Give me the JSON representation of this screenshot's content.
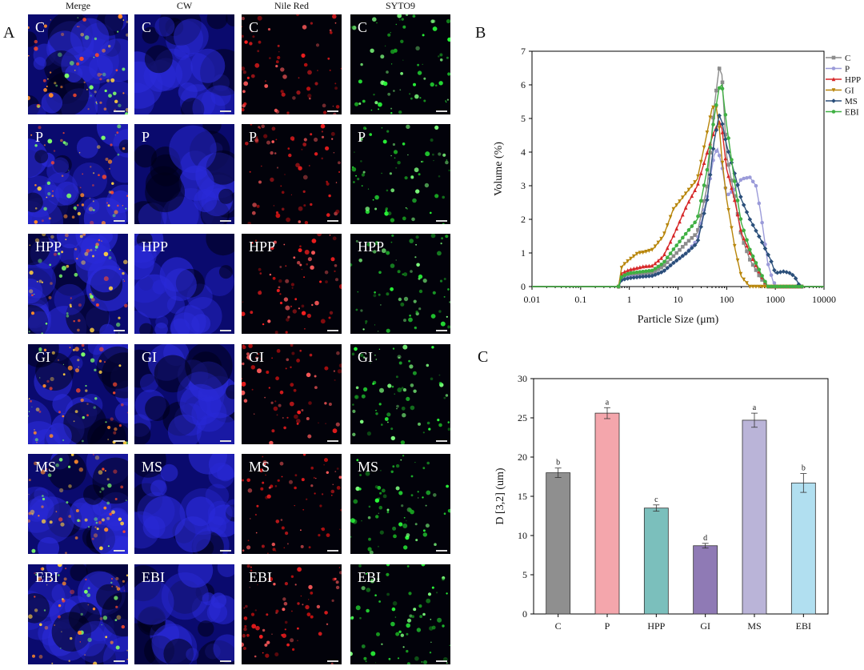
{
  "panel_letters": {
    "a": "A",
    "b": "B",
    "c": "C"
  },
  "micro": {
    "columns": [
      {
        "title": "Merge",
        "key": "merge"
      },
      {
        "title": "CW",
        "key": "cw"
      },
      {
        "title": "Nile Red",
        "key": "nile"
      },
      {
        "title": "SYTO9",
        "key": "syto"
      }
    ],
    "rows": [
      "C",
      "P",
      "HPP",
      "GI",
      "MS",
      "EBI"
    ]
  },
  "chart_data": [
    {
      "type": "line",
      "xlabel": "Particle Size (μm)",
      "ylabel": "Volume (%)",
      "xscale": "log",
      "xlim": [
        0.01,
        10000
      ],
      "ylim": [
        0,
        7
      ],
      "xticks": [
        "0.01",
        "0.1",
        "1",
        "10",
        "100",
        "1000",
        "10000"
      ],
      "yticks": [
        "0",
        "1",
        "2",
        "3",
        "4",
        "5",
        "6",
        "7"
      ],
      "legend_position": "top-right",
      "series": [
        {
          "name": "C",
          "color": "#8c8c8c",
          "marker": "square",
          "points": [
            [
              0.01,
              0
            ],
            [
              0.5,
              0
            ],
            [
              0.6,
              0
            ],
            [
              0.7,
              0.28
            ],
            [
              1,
              0.35
            ],
            [
              2,
              0.4
            ],
            [
              3,
              0.42
            ],
            [
              5,
              0.6
            ],
            [
              8,
              0.9
            ],
            [
              15,
              1.3
            ],
            [
              25,
              1.6
            ],
            [
              40,
              3.0
            ],
            [
              55,
              5.3
            ],
            [
              70,
              6.5
            ],
            [
              80,
              6.3
            ],
            [
              100,
              3.9
            ],
            [
              150,
              2.6
            ],
            [
              200,
              1.5
            ],
            [
              300,
              0.8
            ],
            [
              500,
              0.25
            ],
            [
              700,
              0
            ],
            [
              10000,
              0
            ]
          ]
        },
        {
          "name": "P",
          "color": "#9b9bd9",
          "marker": "circle",
          "points": [
            [
              0.01,
              0
            ],
            [
              0.5,
              0
            ],
            [
              0.6,
              0
            ],
            [
              0.7,
              0.22
            ],
            [
              1,
              0.28
            ],
            [
              2,
              0.3
            ],
            [
              3,
              0.32
            ],
            [
              5,
              0.45
            ],
            [
              8,
              0.7
            ],
            [
              15,
              1.0
            ],
            [
              25,
              1.4
            ],
            [
              40,
              2.7
            ],
            [
              55,
              3.9
            ],
            [
              65,
              4.1
            ],
            [
              80,
              3.6
            ],
            [
              100,
              2.7
            ],
            [
              150,
              2.9
            ],
            [
              200,
              3.2
            ],
            [
              300,
              3.25
            ],
            [
              400,
              3.0
            ],
            [
              500,
              2.2
            ],
            [
              700,
              0.7
            ],
            [
              900,
              0.15
            ],
            [
              1100,
              0
            ],
            [
              10000,
              0
            ]
          ]
        },
        {
          "name": "HPP",
          "color": "#d62728",
          "marker": "triangle-up",
          "points": [
            [
              0.01,
              0
            ],
            [
              0.5,
              0
            ],
            [
              0.6,
              0
            ],
            [
              0.7,
              0.4
            ],
            [
              1,
              0.5
            ],
            [
              2,
              0.6
            ],
            [
              3,
              0.62
            ],
            [
              5,
              0.9
            ],
            [
              8,
              1.5
            ],
            [
              15,
              2.4
            ],
            [
              25,
              3.0
            ],
            [
              40,
              4.0
            ],
            [
              55,
              4.6
            ],
            [
              70,
              4.9
            ],
            [
              80,
              4.7
            ],
            [
              100,
              3.5
            ],
            [
              150,
              2.5
            ],
            [
              200,
              1.6
            ],
            [
              300,
              1.0
            ],
            [
              500,
              0.35
            ],
            [
              700,
              0
            ],
            [
              10000,
              0
            ]
          ]
        },
        {
          "name": "GI",
          "color": "#b8860b",
          "marker": "triangle-down",
          "points": [
            [
              0.01,
              0
            ],
            [
              0.5,
              0
            ],
            [
              0.6,
              0
            ],
            [
              0.7,
              0.6
            ],
            [
              1,
              0.8
            ],
            [
              1.5,
              1.0
            ],
            [
              2,
              1.02
            ],
            [
              3,
              1.1
            ],
            [
              5,
              1.5
            ],
            [
              8,
              2.3
            ],
            [
              15,
              2.8
            ],
            [
              25,
              3.2
            ],
            [
              35,
              4.2
            ],
            [
              50,
              5.3
            ],
            [
              60,
              5.4
            ],
            [
              70,
              4.8
            ],
            [
              80,
              3.8
            ],
            [
              100,
              2.6
            ],
            [
              150,
              1.1
            ],
            [
              200,
              0.3
            ],
            [
              300,
              0
            ],
            [
              10000,
              0
            ]
          ]
        },
        {
          "name": "MS",
          "color": "#2b4f7a",
          "marker": "diamond",
          "points": [
            [
              0.01,
              0
            ],
            [
              0.5,
              0
            ],
            [
              0.6,
              0
            ],
            [
              0.7,
              0.2
            ],
            [
              1,
              0.25
            ],
            [
              2,
              0.3
            ],
            [
              3,
              0.32
            ],
            [
              5,
              0.45
            ],
            [
              8,
              0.7
            ],
            [
              15,
              1.0
            ],
            [
              25,
              1.3
            ],
            [
              40,
              2.6
            ],
            [
              55,
              4.3
            ],
            [
              70,
              5.1
            ],
            [
              80,
              4.9
            ],
            [
              100,
              4.2
            ],
            [
              150,
              3.3
            ],
            [
              200,
              2.6
            ],
            [
              300,
              2.0
            ],
            [
              500,
              1.4
            ],
            [
              800,
              0.8
            ],
            [
              1000,
              0.4
            ],
            [
              1500,
              0.45
            ],
            [
              2000,
              0.4
            ],
            [
              2500,
              0.3
            ],
            [
              3200,
              0
            ],
            [
              10000,
              0
            ]
          ]
        },
        {
          "name": "EBI",
          "color": "#3fb043",
          "marker": "circle",
          "points": [
            [
              0.01,
              0
            ],
            [
              0.5,
              0
            ],
            [
              0.6,
              0
            ],
            [
              0.7,
              0.3
            ],
            [
              1,
              0.4
            ],
            [
              2,
              0.45
            ],
            [
              3,
              0.48
            ],
            [
              5,
              0.7
            ],
            [
              8,
              1.1
            ],
            [
              15,
              1.6
            ],
            [
              25,
              2.0
            ],
            [
              40,
              3.5
            ],
            [
              55,
              5.0
            ],
            [
              70,
              5.9
            ],
            [
              80,
              6.0
            ],
            [
              100,
              4.8
            ],
            [
              150,
              3.0
            ],
            [
              200,
              1.9
            ],
            [
              300,
              1.1
            ],
            [
              500,
              0.4
            ],
            [
              700,
              0
            ],
            [
              10000,
              0
            ]
          ]
        }
      ]
    },
    {
      "type": "bar",
      "ylabel": "D [3,2] (um)",
      "xlabel": "",
      "ylim": [
        0,
        30
      ],
      "yticks": [
        "0",
        "5",
        "10",
        "15",
        "20",
        "25",
        "30"
      ],
      "categories": [
        "C",
        "P",
        "HPP",
        "GI",
        "MS",
        "EBI"
      ],
      "values": [
        18.0,
        25.6,
        13.5,
        8.7,
        24.7,
        16.7
      ],
      "errors": [
        0.6,
        0.7,
        0.4,
        0.3,
        0.9,
        1.2
      ],
      "letters": [
        "b",
        "a",
        "c",
        "d",
        "a",
        "b"
      ],
      "colors": [
        "#8f8f8f",
        "#f4a6ac",
        "#7bbfbc",
        "#8f7ab5",
        "#bab4d8",
        "#b1dff0"
      ]
    }
  ]
}
